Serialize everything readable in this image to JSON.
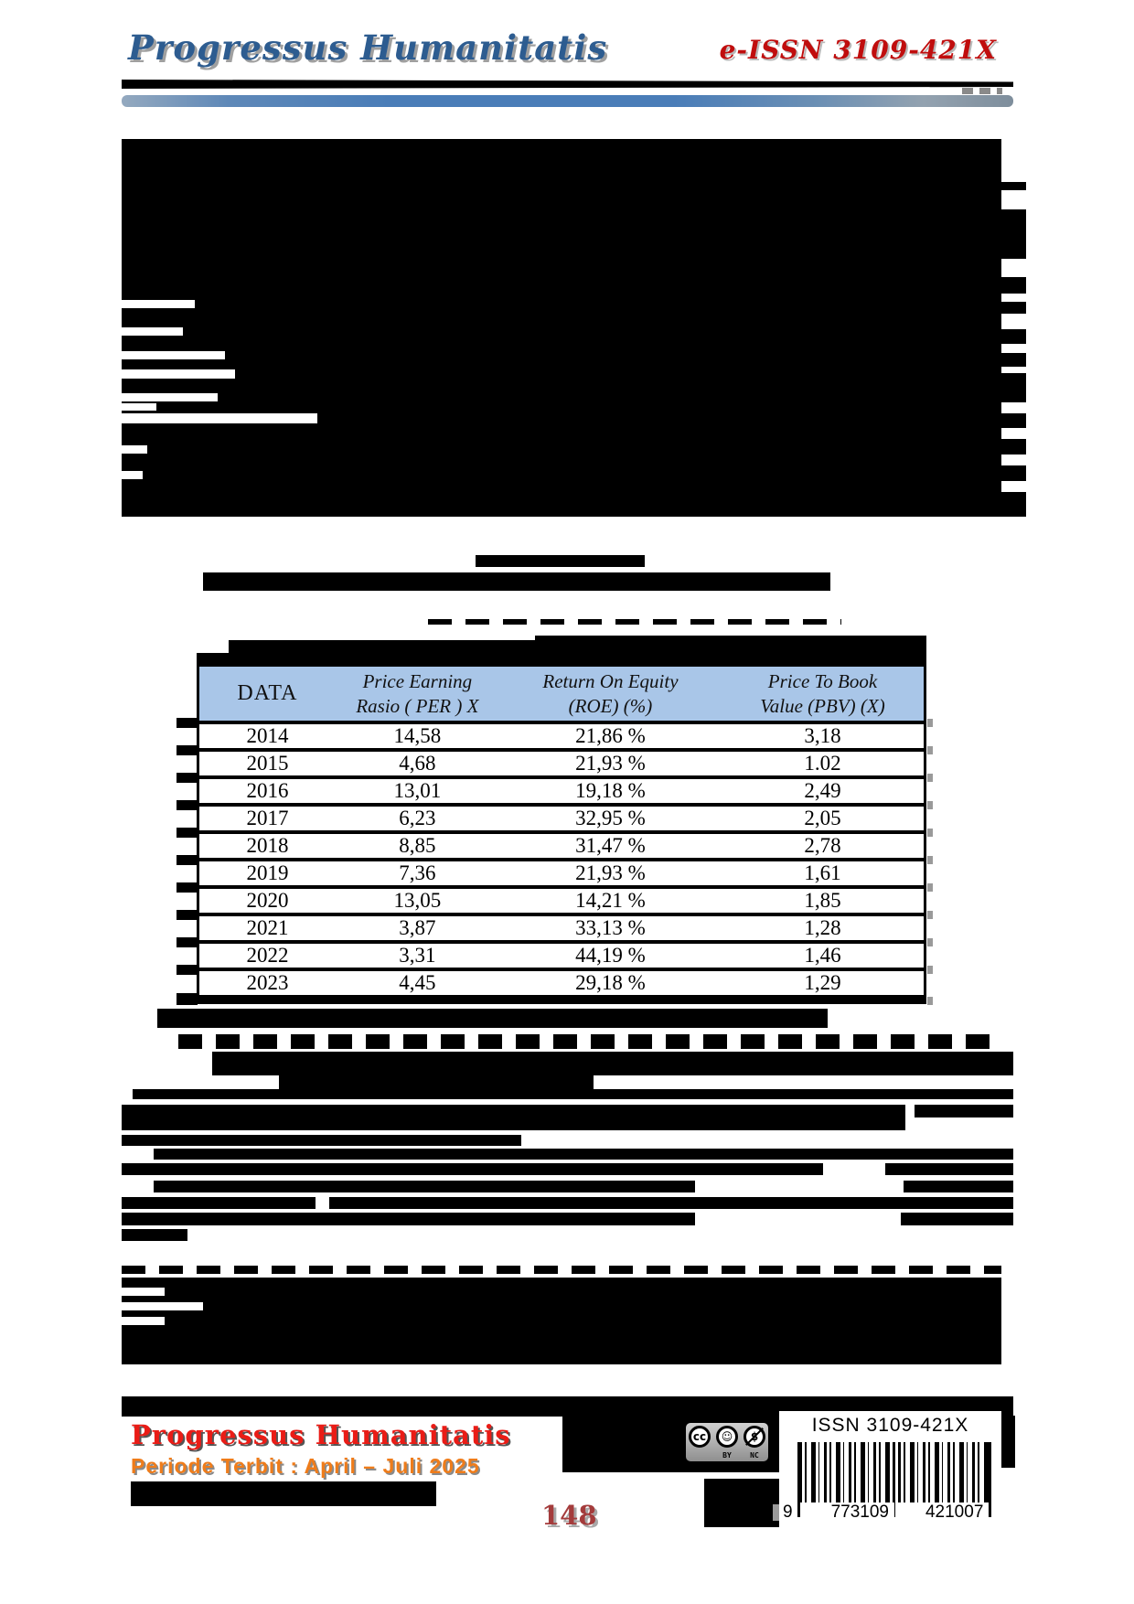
{
  "header": {
    "journal_title": "Progressus Humanitatis",
    "eissn": "e-ISSN 3109-421X"
  },
  "table": {
    "columns": [
      {
        "line1": "DATA",
        "line2": ""
      },
      {
        "line1": "Price Earning",
        "line2": "Rasio  ( PER ) X"
      },
      {
        "line1": "Return On Equity",
        "line2": "(ROE) (%)"
      },
      {
        "line1": "Price To Book",
        "line2": "Value (PBV)  (X)"
      }
    ],
    "rows": [
      {
        "year": "2014",
        "per": "14,58",
        "roe": "21,86 %",
        "pbv": "3,18"
      },
      {
        "year": "2015",
        "per": "4,68",
        "roe": "21,93 %",
        "pbv": "1.02"
      },
      {
        "year": "2016",
        "per": "13,01",
        "roe": "19,18 %",
        "pbv": "2,49"
      },
      {
        "year": "2017",
        "per": "6,23",
        "roe": "32,95 %",
        "pbv": "2,05"
      },
      {
        "year": "2018",
        "per": "8,85",
        "roe": "31,47 %",
        "pbv": "2,78"
      },
      {
        "year": "2019",
        "per": "7,36",
        "roe": "21,93 %",
        "pbv": "1,61"
      },
      {
        "year": "2020",
        "per": "13,05",
        "roe": "14,21 %",
        "pbv": "1,85"
      },
      {
        "year": "2021",
        "per": "3,87",
        "roe": "33,13 %",
        "pbv": "1,28"
      },
      {
        "year": "2022",
        "per": "3,31",
        "roe": "44,19 %",
        "pbv": "1,46"
      },
      {
        "year": "2023",
        "per": "4,45",
        "roe": "29,18 %",
        "pbv": "1,29"
      }
    ]
  },
  "footer": {
    "journal_title": "Progressus Humanitatis",
    "period_line": "Periode Terbit : April – Juli 2025",
    "page_number": "148",
    "license_badges": [
      {
        "symbol": "cc",
        "label": ""
      },
      {
        "symbol": "☺",
        "label": "BY"
      },
      {
        "symbol": "$",
        "label": "NC"
      }
    ],
    "barcode": {
      "issn_label": "ISSN 3109-421X",
      "left_digit": "9",
      "group1": "773109",
      "group2": "421007"
    }
  },
  "colors": {
    "title_blue": "#2d5c90",
    "issn_red": "#c00d0d",
    "table_header_bg": "#a9c6e8",
    "footer_red": "#ea1c16",
    "footer_orange": "#ef7c1a",
    "page_number_red": "#a43c3c"
  }
}
